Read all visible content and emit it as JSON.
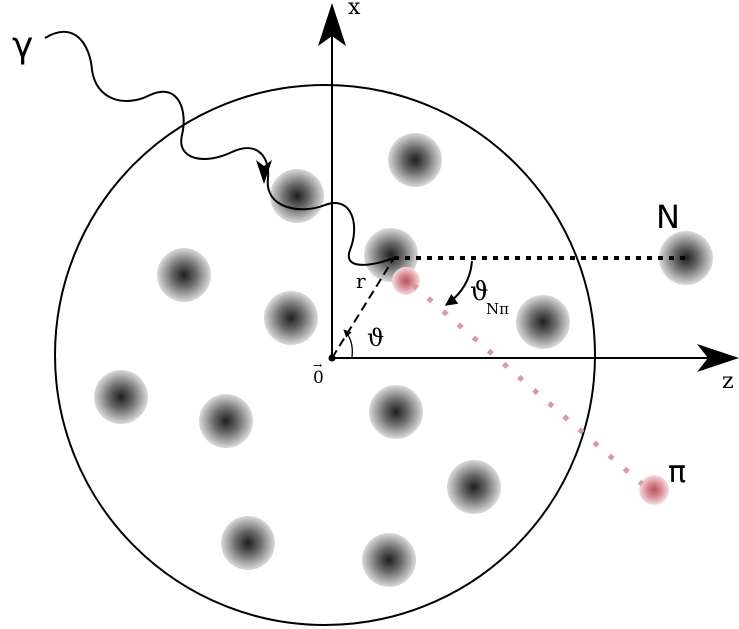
{
  "diagram": {
    "labels": {
      "photon": "γ",
      "x_axis": "x",
      "z_axis": "z",
      "nucleon": "N",
      "pion": "π",
      "radius": "r",
      "angle": "ϑ",
      "angle_npi": "ϑ",
      "angle_npi_sub": "Nπ",
      "origin": "0",
      "origin_vec": "→"
    },
    "colors": {
      "nucleon_core": "#2a2a2a",
      "nucleon_edge": "#d9d9d9",
      "pion_core": "#c0606a",
      "pion_edge": "#f1d2d6",
      "pion_track": "#d99aa0",
      "line": "#000000"
    }
  }
}
